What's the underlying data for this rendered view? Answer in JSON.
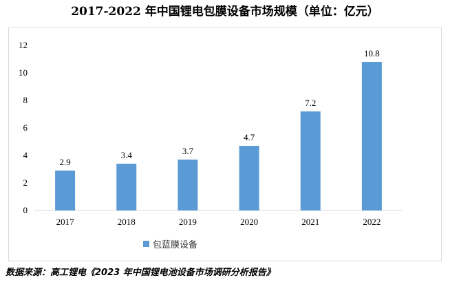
{
  "title": "2017-2022 年中国锂电包膜设备市场规模（单位：亿元）",
  "source": "数据来源：高工锂电《2023 年中国锂电池设备市场调研分析报告》",
  "colors": {
    "bar": "#5b9bd5",
    "axis": "#d9d9d9",
    "frame": "#d9d9d9"
  },
  "chart_data": {
    "type": "bar",
    "title": "2017-2022 年中国锂电包膜设备市场规模（单位：亿元）",
    "categories": [
      "2017",
      "2018",
      "2019",
      "2020",
      "2021",
      "2022"
    ],
    "series": [
      {
        "name": "包蓝膜设备",
        "values": [
          2.9,
          3.4,
          3.7,
          4.7,
          7.2,
          10.8
        ]
      }
    ],
    "data_labels": [
      "2.9",
      "3.4",
      "3.7",
      "4.7",
      "7.2",
      "10.8"
    ],
    "yticks": [
      0,
      2,
      4,
      6,
      8,
      10,
      12
    ],
    "ylim": [
      0,
      12
    ],
    "xlabel": "",
    "ylabel": "",
    "grid": false,
    "legend": "bottom"
  }
}
